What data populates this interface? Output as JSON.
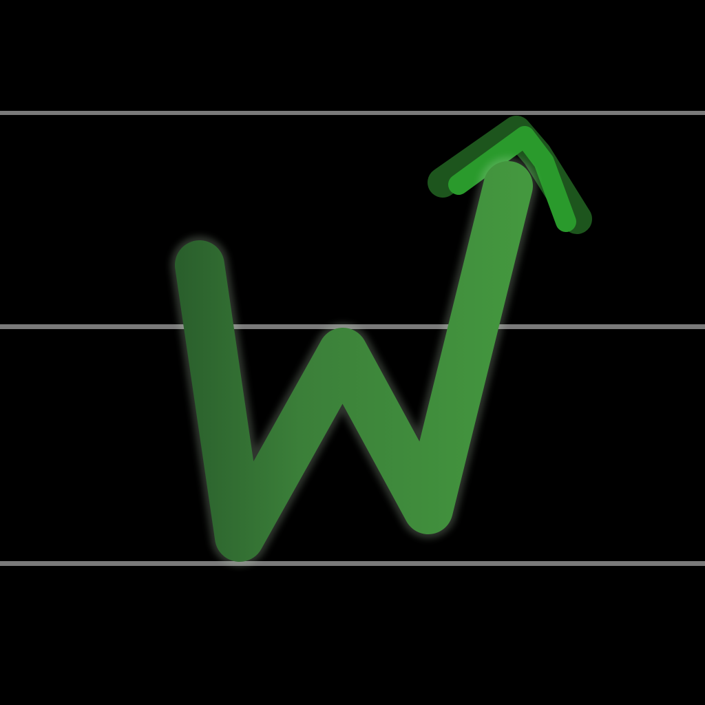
{
  "icon": {
    "name": "stock-trend-w-logo",
    "background_color": "#000000",
    "rule_line_color": "#7a7a7a",
    "stroke_gradient_start": "#2a5f2c",
    "stroke_gradient_end": "#44983f",
    "arrow_color": "#2a9a2c",
    "arrow_shadow_color": "#1f5a1f",
    "glow_color": "#d6f0d0"
  }
}
